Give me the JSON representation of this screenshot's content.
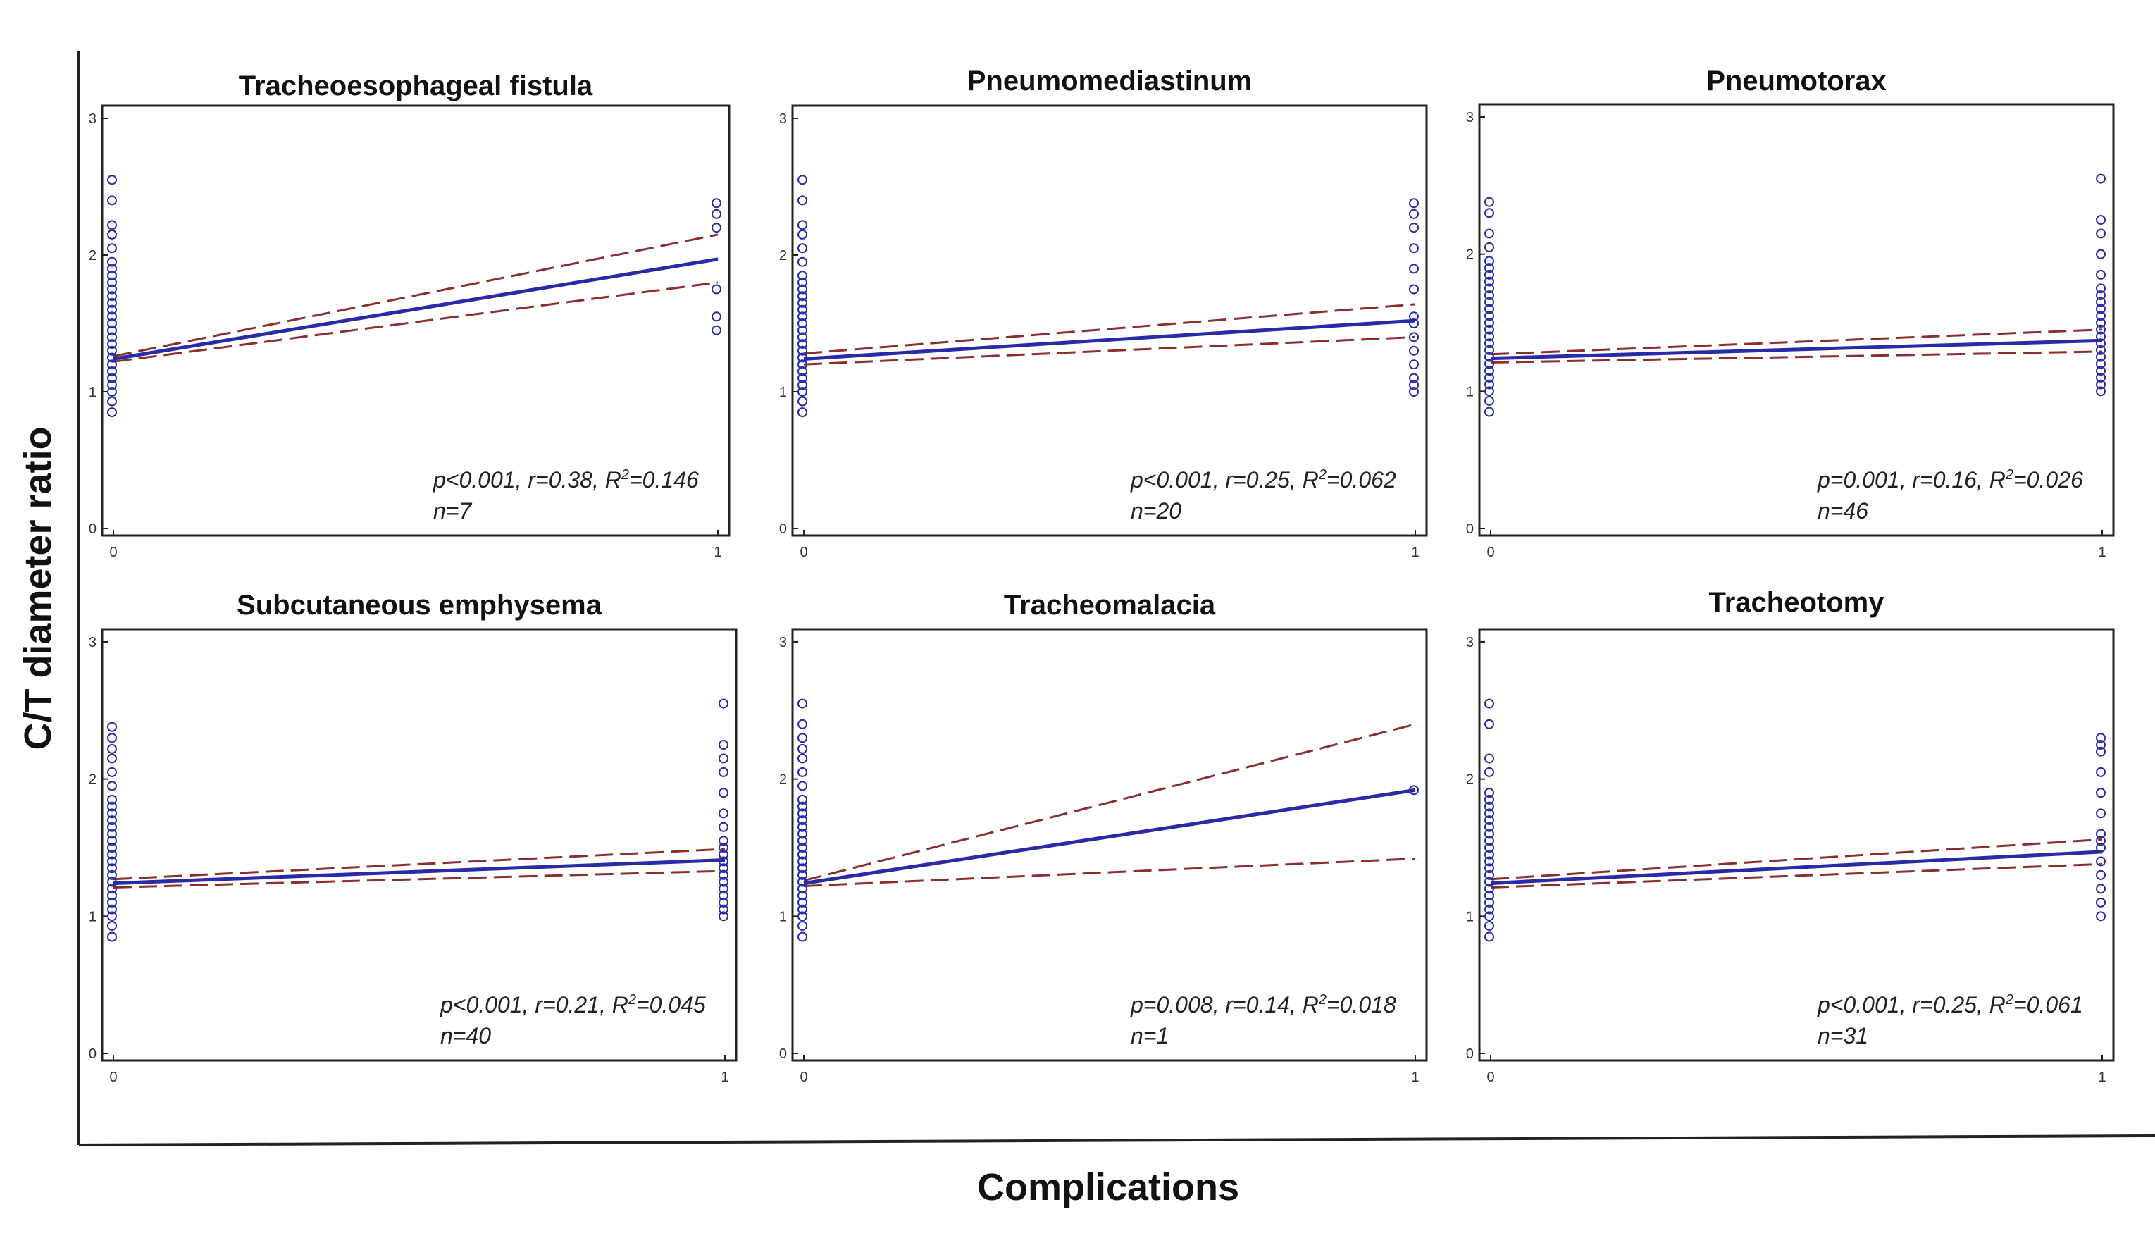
{
  "figure": {
    "ylabel": "C/T diameter ratio",
    "xlabel": "Complications"
  },
  "chart_data": [
    {
      "type": "scatter",
      "title": "Tracheoesophageal  fistula",
      "x_ticks": [
        "0",
        "1"
      ],
      "y_ticks": [
        "0",
        "1",
        "2",
        "3"
      ],
      "xlim": [
        0,
        1
      ],
      "ylim": [
        0,
        3
      ],
      "stats_line": "p<0.001, r=0.38, R",
      "stats_r2": "=0.146",
      "n_label": "n=7",
      "fit": [
        1.24,
        1.97
      ],
      "ci_lower": [
        1.22,
        1.8
      ],
      "ci_upper": [
        1.26,
        2.15
      ],
      "points_x0": [
        0.85,
        0.93,
        1.0,
        1.05,
        1.1,
        1.15,
        1.2,
        1.25,
        1.3,
        1.35,
        1.4,
        1.45,
        1.5,
        1.55,
        1.6,
        1.65,
        1.7,
        1.75,
        1.8,
        1.85,
        1.9,
        1.95,
        2.05,
        2.15,
        2.22,
        2.4,
        2.55
      ],
      "points_x1": [
        1.45,
        1.55,
        1.75,
        2.2,
        2.3,
        2.38
      ]
    },
    {
      "type": "scatter",
      "title": "Pneumomediastinum",
      "x_ticks": [
        "0",
        "1"
      ],
      "y_ticks": [
        "0",
        "1",
        "2",
        "3"
      ],
      "xlim": [
        0,
        1
      ],
      "ylim": [
        0,
        3
      ],
      "stats_line": "p<0.001, r=0.25, R",
      "stats_r2": "=0.062",
      "n_label": "n=20",
      "fit": [
        1.24,
        1.52
      ],
      "ci_lower": [
        1.2,
        1.4
      ],
      "ci_upper": [
        1.28,
        1.64
      ],
      "points_x0": [
        0.85,
        0.93,
        1.0,
        1.05,
        1.1,
        1.15,
        1.2,
        1.25,
        1.3,
        1.35,
        1.4,
        1.45,
        1.5,
        1.55,
        1.6,
        1.65,
        1.7,
        1.75,
        1.8,
        1.85,
        1.95,
        2.05,
        2.15,
        2.22,
        2.4,
        2.55
      ],
      "points_x1": [
        1.0,
        1.05,
        1.1,
        1.2,
        1.3,
        1.4,
        1.5,
        1.55,
        1.75,
        1.9,
        2.05,
        2.2,
        2.3,
        2.38
      ]
    },
    {
      "type": "scatter",
      "title": "Pneumotorax",
      "x_ticks": [
        "0",
        "1"
      ],
      "y_ticks": [
        "0",
        "1",
        "2",
        "3"
      ],
      "xlim": [
        0,
        1
      ],
      "ylim": [
        0,
        3
      ],
      "stats_line": "p=0.001, r=0.16, R",
      "stats_r2": "=0.026",
      "n_label": "n=46",
      "fit": [
        1.24,
        1.37
      ],
      "ci_lower": [
        1.21,
        1.29
      ],
      "ci_upper": [
        1.27,
        1.45
      ],
      "points_x0": [
        0.85,
        0.93,
        1.0,
        1.05,
        1.1,
        1.15,
        1.2,
        1.25,
        1.3,
        1.35,
        1.4,
        1.45,
        1.5,
        1.55,
        1.6,
        1.65,
        1.7,
        1.75,
        1.8,
        1.85,
        1.9,
        1.95,
        2.05,
        2.15,
        2.3,
        2.38
      ],
      "points_x1": [
        1.0,
        1.05,
        1.1,
        1.15,
        1.2,
        1.25,
        1.3,
        1.35,
        1.4,
        1.45,
        1.5,
        1.55,
        1.6,
        1.65,
        1.7,
        1.75,
        1.85,
        2.0,
        2.15,
        2.25,
        2.55
      ]
    },
    {
      "type": "scatter",
      "title": "Subcutaneous  emphysema",
      "x_ticks": [
        "0",
        "1"
      ],
      "y_ticks": [
        "0",
        "1",
        "2",
        "3"
      ],
      "xlim": [
        0,
        1
      ],
      "ylim": [
        0,
        3
      ],
      "stats_line": "p<0.001, r=0.21, R",
      "stats_r2": "=0.045",
      "n_label": "n=40",
      "fit": [
        1.24,
        1.41
      ],
      "ci_lower": [
        1.21,
        1.33
      ],
      "ci_upper": [
        1.27,
        1.49
      ],
      "points_x0": [
        0.85,
        0.93,
        1.0,
        1.05,
        1.1,
        1.15,
        1.2,
        1.25,
        1.3,
        1.35,
        1.4,
        1.45,
        1.5,
        1.55,
        1.6,
        1.65,
        1.7,
        1.75,
        1.8,
        1.85,
        1.95,
        2.05,
        2.15,
        2.22,
        2.3,
        2.38
      ],
      "points_x1": [
        1.0,
        1.05,
        1.1,
        1.15,
        1.2,
        1.25,
        1.3,
        1.35,
        1.4,
        1.45,
        1.5,
        1.55,
        1.65,
        1.75,
        1.9,
        2.05,
        2.15,
        2.25,
        2.55
      ]
    },
    {
      "type": "scatter",
      "title": "Tracheomalacia",
      "x_ticks": [
        "0",
        "1"
      ],
      "y_ticks": [
        "0",
        "1",
        "2",
        "3"
      ],
      "xlim": [
        0,
        1
      ],
      "ylim": [
        0,
        3
      ],
      "stats_line": "p=0.008, r=0.14, R",
      "stats_r2": "=0.018",
      "n_label": "n=1",
      "fit": [
        1.24,
        1.92
      ],
      "ci_lower": [
        1.22,
        1.42
      ],
      "ci_upper": [
        1.26,
        2.4
      ],
      "points_x0": [
        0.85,
        0.93,
        1.0,
        1.05,
        1.1,
        1.15,
        1.2,
        1.25,
        1.3,
        1.35,
        1.4,
        1.45,
        1.5,
        1.55,
        1.6,
        1.65,
        1.7,
        1.75,
        1.8,
        1.85,
        1.95,
        2.05,
        2.15,
        2.22,
        2.3,
        2.4,
        2.55
      ],
      "points_x1": [
        1.92
      ]
    },
    {
      "type": "scatter",
      "title": "Tracheotomy",
      "x_ticks": [
        "0",
        "1"
      ],
      "y_ticks": [
        "0",
        "1",
        "2",
        "3"
      ],
      "xlim": [
        0,
        1
      ],
      "ylim": [
        0,
        3
      ],
      "stats_line": "p<0.001, r=0.25, R",
      "stats_r2": "=0.061",
      "n_label": "n=31",
      "fit": [
        1.24,
        1.47
      ],
      "ci_lower": [
        1.21,
        1.38
      ],
      "ci_upper": [
        1.27,
        1.56
      ],
      "points_x0": [
        0.85,
        0.93,
        1.0,
        1.05,
        1.1,
        1.15,
        1.2,
        1.25,
        1.3,
        1.35,
        1.4,
        1.45,
        1.5,
        1.55,
        1.6,
        1.65,
        1.7,
        1.75,
        1.8,
        1.85,
        1.9,
        2.05,
        2.15,
        2.4,
        2.55
      ],
      "points_x1": [
        1.0,
        1.1,
        1.2,
        1.3,
        1.4,
        1.5,
        1.55,
        1.6,
        1.75,
        1.9,
        2.05,
        2.2,
        2.25,
        2.3
      ]
    }
  ]
}
